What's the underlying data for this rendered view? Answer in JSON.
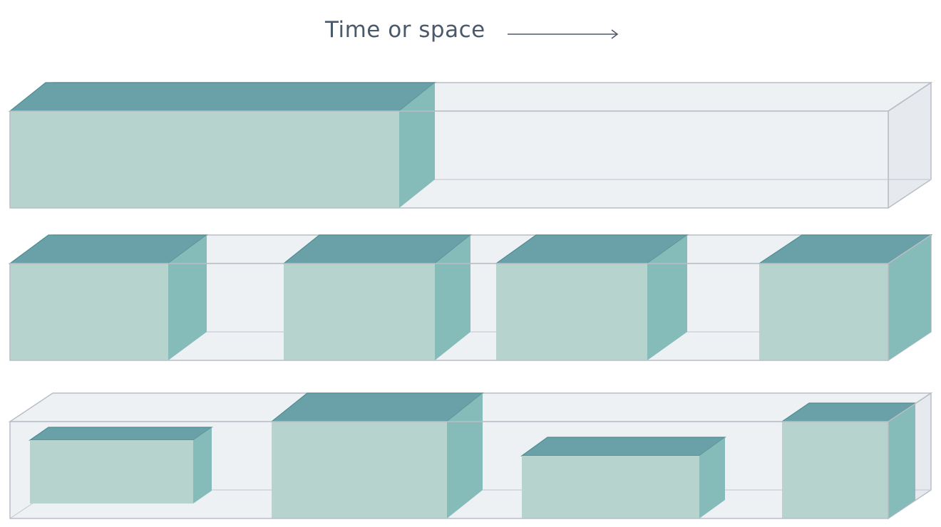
{
  "header": {
    "title": "Time or space",
    "arrow_icon": "right-arrow-icon"
  },
  "colors": {
    "background": "#ffffff",
    "container_fill": "#eef1f4",
    "container_edge": "#b9bec6",
    "block_front": "#b7d3cd",
    "block_top": "#6aa0a8",
    "block_side": "#85bbb9",
    "title_text": "#4b5a6a"
  }
}
